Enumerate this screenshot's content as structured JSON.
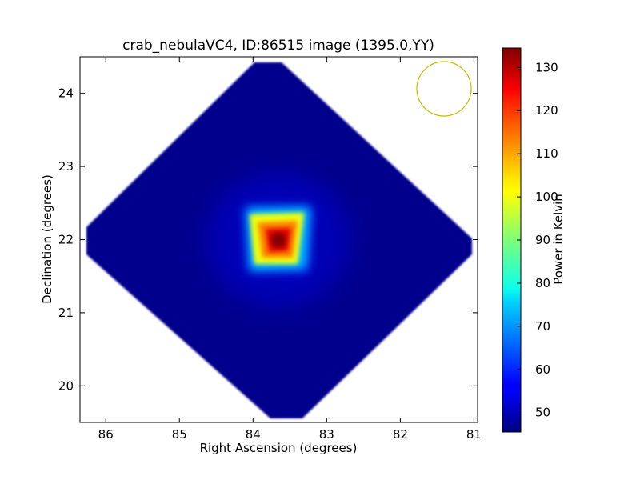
{
  "chart_data": {
    "type": "heatmap",
    "title": "crab_nebulaVC4, ID:86515 image (1395.0,YY)",
    "xlabel": "Right Ascension (degrees)",
    "ylabel": "Declination (degrees)",
    "xlim": [
      86.35,
      80.95
    ],
    "ylim": [
      19.5,
      24.5
    ],
    "x_ticks": [
      86,
      85,
      84,
      83,
      82,
      81
    ],
    "y_ticks": [
      20,
      21,
      22,
      23,
      24
    ],
    "x_tick_labels": [
      "86",
      "85",
      "84",
      "83",
      "82",
      "81"
    ],
    "y_tick_labels": [
      "20",
      "21",
      "22",
      "23",
      "24"
    ],
    "grid": false,
    "colormap": "jet",
    "colorbar": {
      "label": "Power in Kelvin",
      "range": [
        45.5,
        134.5
      ],
      "ticks": [
        50,
        60,
        70,
        80,
        90,
        100,
        110,
        120,
        130
      ],
      "tick_labels": [
        "50",
        "60",
        "70",
        "80",
        "90",
        "100",
        "110",
        "120",
        "130"
      ]
    },
    "source": {
      "ra": 83.63,
      "dec": 22.01,
      "peak_value": 134.0
    },
    "background_value": 47.0,
    "beam_circle_color": "#bfbf00"
  }
}
